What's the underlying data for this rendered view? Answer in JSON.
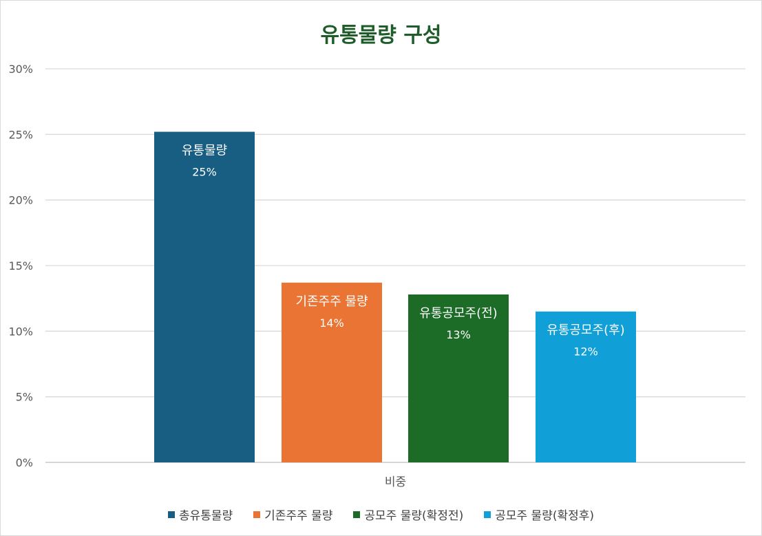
{
  "chart_data": {
    "type": "bar",
    "title": "유통물량 구성",
    "xlabel": "",
    "ylabel": "",
    "categories": [
      "비중"
    ],
    "ylim": [
      0,
      30
    ],
    "yticks": [
      0,
      5,
      10,
      15,
      20,
      25,
      30
    ],
    "ytick_labels": [
      "0%",
      "5%",
      "10%",
      "15%",
      "20%",
      "25%",
      "30%"
    ],
    "grid": true,
    "legend_position": "bottom",
    "series": [
      {
        "name": "총유통물량",
        "values": [
          25.2
        ],
        "color": "#175e82",
        "label_name": "유통물량",
        "label_value": "25%"
      },
      {
        "name": "기존주주 물량",
        "values": [
          13.7
        ],
        "color": "#e97433",
        "label_name": "기존주주 물량",
        "label_value": "14%"
      },
      {
        "name": "공모주 물량(확정전)",
        "values": [
          12.8
        ],
        "color": "#1c6b27",
        "label_name": "유통공모주(전)",
        "label_value": "13%"
      },
      {
        "name": "공모주 물량(확정후)",
        "values": [
          11.5
        ],
        "color": "#119fd8",
        "label_name": "유통공모주(후)",
        "label_value": "12%"
      }
    ]
  }
}
